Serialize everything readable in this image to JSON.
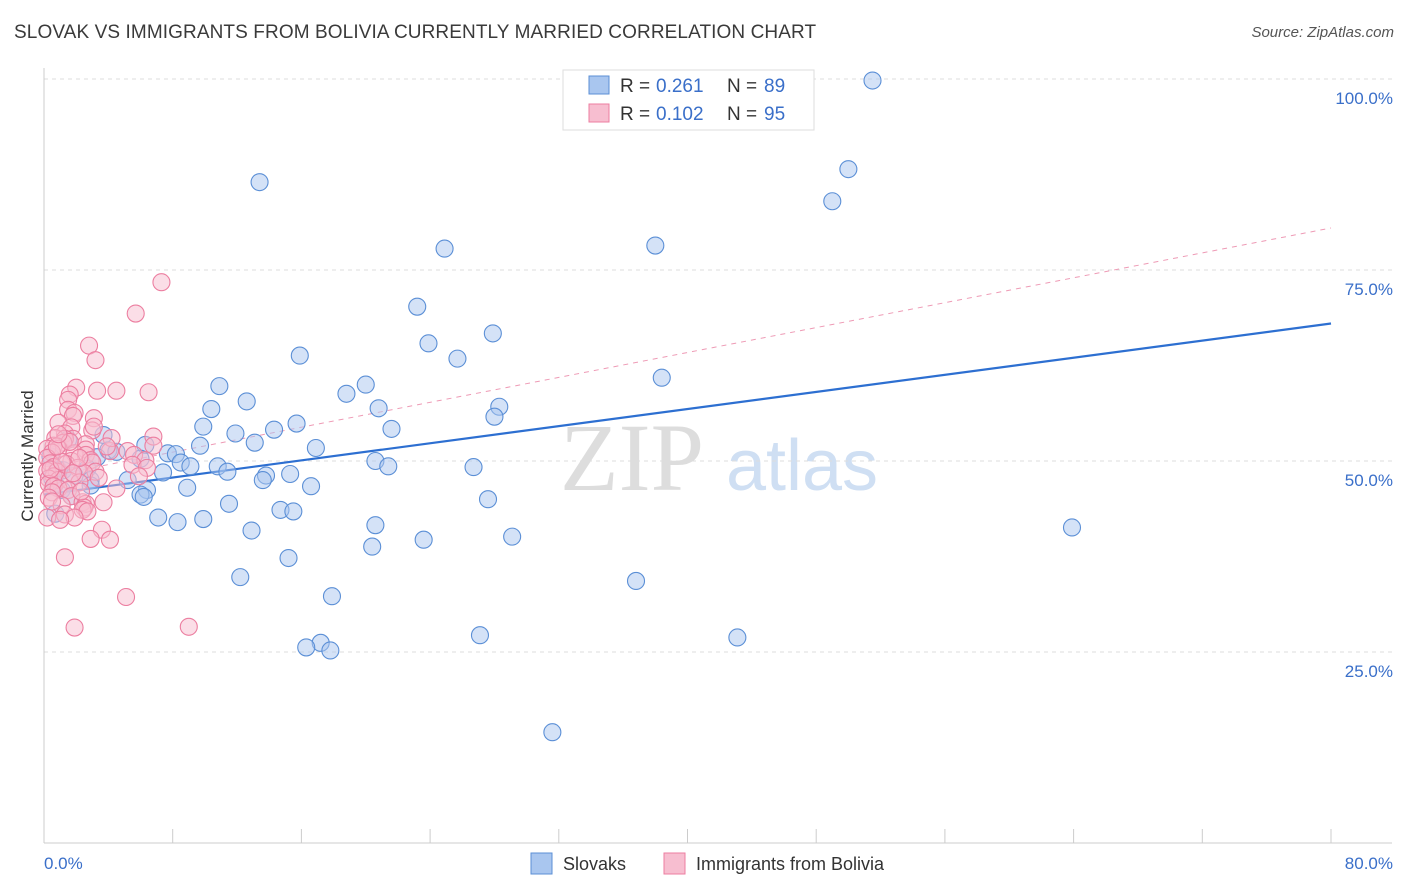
{
  "header": {
    "title": "SLOVAK VS IMMIGRANTS FROM BOLIVIA CURRENTLY MARRIED CORRELATION CHART",
    "source": "Source: ZipAtlas.com"
  },
  "watermark": {
    "zip": "ZIP",
    "atlas": "atlas"
  },
  "chart_data": {
    "type": "scatter",
    "title": "SLOVAK VS IMMIGRANTS FROM BOLIVIA CURRENTLY MARRIED CORRELATION CHART",
    "xlabel": "",
    "ylabel": "Currently Married",
    "xlim": [
      0,
      80
    ],
    "ylim": [
      0,
      105
    ],
    "x_tick_labels": {
      "min": "0.0%",
      "max": "80.0%"
    },
    "y_ticks": [
      {
        "value": 25,
        "label": "25.0%"
      },
      {
        "value": 50,
        "label": "50.0%"
      },
      {
        "value": 75,
        "label": "75.0%"
      },
      {
        "value": 100,
        "label": "100.0%"
      }
    ],
    "grid": true,
    "legend_position": "bottom-center",
    "stats_box": [
      {
        "r_label": "R = ",
        "r_value": "0.261",
        "n_label": "N = ",
        "n_value": "89"
      },
      {
        "r_label": "R = ",
        "r_value": "0.102",
        "n_label": "N = ",
        "n_value": "95"
      }
    ],
    "series": [
      {
        "name": "Slovaks",
        "color": "#5b8fd6",
        "fill": "#a9c6ef",
        "trend": {
          "x": [
            0,
            80
          ],
          "y": [
            45.6,
            68.0
          ],
          "style": "solid",
          "color": "#2d6fd1"
        },
        "points": [
          [
            51.5,
            99.8
          ],
          [
            13.4,
            86.5
          ],
          [
            50.0,
            88.2
          ],
          [
            49.0,
            84.0
          ],
          [
            24.9,
            77.8
          ],
          [
            38.0,
            78.2
          ],
          [
            23.2,
            70.2
          ],
          [
            27.9,
            66.7
          ],
          [
            23.9,
            65.4
          ],
          [
            25.7,
            63.4
          ],
          [
            15.9,
            63.8
          ],
          [
            38.4,
            60.9
          ],
          [
            10.9,
            59.8
          ],
          [
            20.0,
            60.0
          ],
          [
            18.8,
            58.8
          ],
          [
            12.6,
            57.8
          ],
          [
            28.3,
            57.1
          ],
          [
            10.4,
            56.8
          ],
          [
            20.8,
            56.9
          ],
          [
            28.0,
            55.8
          ],
          [
            15.7,
            54.9
          ],
          [
            9.9,
            54.5
          ],
          [
            21.6,
            54.2
          ],
          [
            14.3,
            54.1
          ],
          [
            11.9,
            53.6
          ],
          [
            3.7,
            53.4
          ],
          [
            13.1,
            52.4
          ],
          [
            6.3,
            52.1
          ],
          [
            9.7,
            52.0
          ],
          [
            16.9,
            51.7
          ],
          [
            4.0,
            51.4
          ],
          [
            4.5,
            51.2
          ],
          [
            7.7,
            51.0
          ],
          [
            8.2,
            50.9
          ],
          [
            3.3,
            50.5
          ],
          [
            6.0,
            50.3
          ],
          [
            20.6,
            50.0
          ],
          [
            8.5,
            49.8
          ],
          [
            21.4,
            49.3
          ],
          [
            26.7,
            49.2
          ],
          [
            9.1,
            49.3
          ],
          [
            10.8,
            49.3
          ],
          [
            2.7,
            49.0
          ],
          [
            0.9,
            48.8
          ],
          [
            1.2,
            48.8
          ],
          [
            11.4,
            48.6
          ],
          [
            7.4,
            48.5
          ],
          [
            15.3,
            48.3
          ],
          [
            1.9,
            48.1
          ],
          [
            13.8,
            48.1
          ],
          [
            0.5,
            47.8
          ],
          [
            5.2,
            47.5
          ],
          [
            2.9,
            47.5
          ],
          [
            13.6,
            47.5
          ],
          [
            0.7,
            47.0
          ],
          [
            2.9,
            46.8
          ],
          [
            16.6,
            46.7
          ],
          [
            8.9,
            46.5
          ],
          [
            1.1,
            46.2
          ],
          [
            6.4,
            46.2
          ],
          [
            6.0,
            45.6
          ],
          [
            1.7,
            45.4
          ],
          [
            6.2,
            45.3
          ],
          [
            27.6,
            45.0
          ],
          [
            11.5,
            44.4
          ],
          [
            14.7,
            43.6
          ],
          [
            15.5,
            43.4
          ],
          [
            0.7,
            43.1
          ],
          [
            7.1,
            42.6
          ],
          [
            9.9,
            42.4
          ],
          [
            8.3,
            42.0
          ],
          [
            20.6,
            41.6
          ],
          [
            12.9,
            40.9
          ],
          [
            29.1,
            40.1
          ],
          [
            23.6,
            39.7
          ],
          [
            20.4,
            38.8
          ],
          [
            63.9,
            41.3
          ],
          [
            15.2,
            37.3
          ],
          [
            36.8,
            34.3
          ],
          [
            12.2,
            34.8
          ],
          [
            17.9,
            32.3
          ],
          [
            27.1,
            27.2
          ],
          [
            43.1,
            26.9
          ],
          [
            17.2,
            26.2
          ],
          [
            16.3,
            25.6
          ],
          [
            17.8,
            25.2
          ],
          [
            31.6,
            14.5
          ],
          [
            1.5,
            52.8
          ],
          [
            0.4,
            50.6
          ]
        ]
      },
      {
        "name": "Immigrants from Bolivia",
        "color": "#ec7ea0",
        "fill": "#f7bed0",
        "trend": {
          "x": [
            0,
            80
          ],
          "y": [
            47.9,
            80.5
          ],
          "style": "dashed",
          "color": "#ee9ab5"
        },
        "points": [
          [
            7.3,
            73.4
          ],
          [
            5.7,
            69.3
          ],
          [
            2.8,
            65.1
          ],
          [
            3.2,
            63.2
          ],
          [
            2.0,
            59.6
          ],
          [
            3.3,
            59.2
          ],
          [
            4.5,
            59.2
          ],
          [
            6.5,
            59.0
          ],
          [
            1.6,
            58.7
          ],
          [
            1.5,
            58.0
          ],
          [
            1.5,
            56.7
          ],
          [
            1.9,
            56.3
          ],
          [
            1.8,
            55.9
          ],
          [
            3.1,
            55.6
          ],
          [
            0.9,
            55.0
          ],
          [
            1.7,
            54.4
          ],
          [
            3.0,
            54.0
          ],
          [
            1.3,
            53.6
          ],
          [
            6.8,
            53.2
          ],
          [
            0.7,
            53.0
          ],
          [
            1.8,
            52.9
          ],
          [
            1.3,
            52.9
          ],
          [
            1.2,
            52.4
          ],
          [
            2.6,
            52.2
          ],
          [
            0.6,
            52.0
          ],
          [
            6.8,
            52.0
          ],
          [
            0.2,
            51.6
          ],
          [
            0.9,
            51.6
          ],
          [
            2.6,
            51.5
          ],
          [
            4.1,
            51.3
          ],
          [
            5.2,
            51.3
          ],
          [
            0.5,
            51.1
          ],
          [
            1.9,
            51.0
          ],
          [
            2.6,
            50.8
          ],
          [
            5.6,
            50.8
          ],
          [
            0.2,
            50.4
          ],
          [
            2.9,
            50.1
          ],
          [
            6.3,
            50.1
          ],
          [
            1.7,
            50.0
          ],
          [
            3.0,
            49.8
          ],
          [
            0.4,
            49.7
          ],
          [
            1.4,
            49.6
          ],
          [
            5.5,
            49.5
          ],
          [
            0.6,
            49.2
          ],
          [
            2.1,
            49.1
          ],
          [
            6.4,
            49.1
          ],
          [
            0.2,
            48.7
          ],
          [
            0.8,
            48.6
          ],
          [
            3.2,
            48.6
          ],
          [
            2.5,
            48.4
          ],
          [
            0.6,
            48.0
          ],
          [
            0.3,
            47.7
          ],
          [
            0.9,
            47.5
          ],
          [
            1.6,
            47.4
          ],
          [
            2.2,
            47.2
          ],
          [
            0.3,
            47.0
          ],
          [
            0.6,
            46.7
          ],
          [
            0.9,
            46.4
          ],
          [
            4.5,
            46.4
          ],
          [
            1.5,
            46.2
          ],
          [
            0.5,
            45.9
          ],
          [
            1.7,
            45.4
          ],
          [
            0.3,
            45.2
          ],
          [
            3.7,
            44.6
          ],
          [
            2.4,
            44.6
          ],
          [
            2.6,
            44.4
          ],
          [
            1.1,
            44.2
          ],
          [
            2.5,
            43.9
          ],
          [
            2.4,
            43.6
          ],
          [
            2.7,
            43.4
          ],
          [
            1.3,
            43.0
          ],
          [
            1.9,
            42.6
          ],
          [
            0.2,
            42.6
          ],
          [
            1.0,
            42.3
          ],
          [
            3.6,
            41.0
          ],
          [
            2.9,
            39.8
          ],
          [
            4.1,
            39.7
          ],
          [
            1.3,
            37.4
          ],
          [
            5.1,
            32.2
          ],
          [
            1.9,
            28.2
          ],
          [
            9.0,
            28.3
          ],
          [
            3.1,
            54.5
          ],
          [
            4.2,
            53.0
          ],
          [
            0.4,
            48.9
          ],
          [
            2.3,
            46.0
          ],
          [
            1.1,
            49.9
          ],
          [
            3.4,
            47.8
          ],
          [
            0.8,
            51.9
          ],
          [
            5.9,
            48.0
          ],
          [
            1.6,
            52.5
          ],
          [
            2.2,
            50.4
          ],
          [
            0.5,
            44.7
          ],
          [
            1.8,
            48.4
          ],
          [
            0.9,
            53.5
          ],
          [
            3.9,
            51.9
          ]
        ]
      }
    ]
  }
}
